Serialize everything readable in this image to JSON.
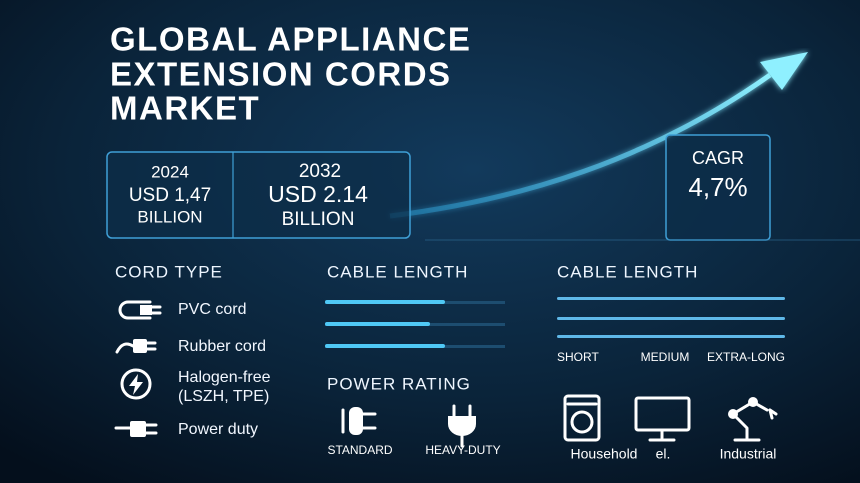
{
  "header": {
    "title_lines": [
      "GLOBAL APPLIANCE",
      "EXTENSION CORDS",
      "MARKET"
    ]
  },
  "stats": [
    {
      "year": "2024",
      "value": "USD 1,47",
      "unit": "BILLION"
    },
    {
      "year": "2032",
      "value": "USD 2.14",
      "unit": "BILLION"
    }
  ],
  "cagr": {
    "label": "CAGR",
    "value": "4,7%"
  },
  "cord_type": {
    "title": "CORD TYPE",
    "items": [
      {
        "lines": [
          "PVC cord"
        ]
      },
      {
        "lines": [
          "Rubber cord"
        ]
      },
      {
        "lines": [
          "Halogen-free",
          "(LSZH, TPE)"
        ]
      },
      {
        "lines": [
          "Power duty"
        ]
      }
    ]
  },
  "cable_length_1": {
    "title": "CABLE LENGTH"
  },
  "power_rating": {
    "title": "POWER RATING",
    "labels": [
      "STANDARD",
      "HEAVY-DUTY"
    ]
  },
  "cable_length_2": {
    "title": "CABLE LENGTH",
    "labels": [
      "SHORT",
      "MEDIUM",
      "EXTRA-LONG"
    ]
  },
  "applications": {
    "labels": [
      "Household",
      "el.",
      "Industrial"
    ]
  }
}
